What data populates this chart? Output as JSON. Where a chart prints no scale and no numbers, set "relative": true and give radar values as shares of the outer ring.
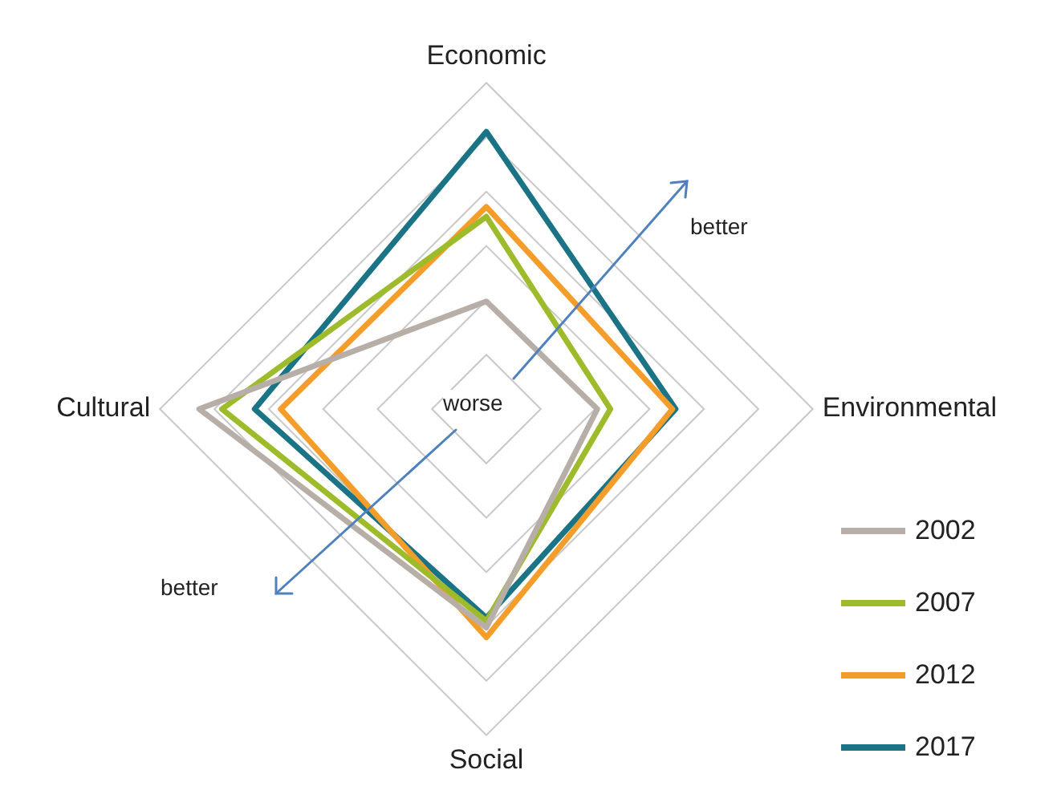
{
  "chart_data": {
    "type": "radar",
    "relative": true,
    "categories": [
      "Economic",
      "Environmental",
      "Social",
      "Cultural"
    ],
    "series": [
      {
        "name": "2002",
        "color": "#b8aea8",
        "values": [
          0.33,
          0.34,
          0.67,
          0.88
        ]
      },
      {
        "name": "2007",
        "color": "#9dbb2a",
        "values": [
          0.59,
          0.38,
          0.65,
          0.81
        ]
      },
      {
        "name": "2012",
        "color": "#f59d2a",
        "values": [
          0.62,
          0.57,
          0.7,
          0.63
        ]
      },
      {
        "name": "2017",
        "color": "#1b7486",
        "values": [
          0.85,
          0.58,
          0.64,
          0.71
        ]
      }
    ],
    "annotations": [
      "better",
      "better",
      "worse"
    ],
    "grid": true,
    "legend": "bottom right",
    "marker": "none",
    "line_style": "solid"
  }
}
